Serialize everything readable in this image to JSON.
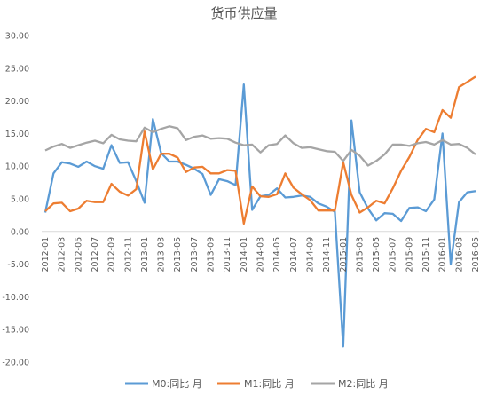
{
  "chart_data": {
    "type": "line",
    "title": "货币供应量",
    "xlabel": "",
    "ylabel": "",
    "ylim": [
      -20,
      30
    ],
    "yticks": [
      "30.00",
      "25.00",
      "20.00",
      "15.00",
      "10.00",
      "5.00",
      "0.00",
      "-5.00",
      "-10.00",
      "-15.00",
      "-20.00"
    ],
    "yticks_values": [
      30,
      25,
      20,
      15,
      10,
      5,
      0,
      -5,
      -10,
      -15,
      -20
    ],
    "x": [
      "2012-01",
      "2012-02",
      "2012-03",
      "2012-04",
      "2012-05",
      "2012-06",
      "2012-07",
      "2012-08",
      "2012-09",
      "2012-10",
      "2012-11",
      "2012-12",
      "2013-01",
      "2013-02",
      "2013-03",
      "2013-04",
      "2013-05",
      "2013-06",
      "2013-07",
      "2013-08",
      "2013-09",
      "2013-10",
      "2013-11",
      "2013-12",
      "2014-01",
      "2014-02",
      "2014-03",
      "2014-04",
      "2014-05",
      "2014-06",
      "2014-07",
      "2014-08",
      "2014-09",
      "2014-10",
      "2014-11",
      "2014-12",
      "2015-01",
      "2015-02",
      "2015-03",
      "2015-04",
      "2015-05",
      "2015-06",
      "2015-07",
      "2015-08",
      "2015-09",
      "2015-10",
      "2015-11",
      "2015-12",
      "2016-01",
      "2016-02",
      "2016-03",
      "2016-04",
      "2016-05"
    ],
    "xtick_labels": [
      "2012-01",
      "2012-03",
      "2012-05",
      "2012-07",
      "2012-09",
      "2012-11",
      "2013-01",
      "2013-03",
      "2013-05",
      "2013-07",
      "2013-09",
      "2013-11",
      "2014-01",
      "2014-03",
      "2014-05",
      "2014-07",
      "2014-09",
      "2014-11",
      "2015-01",
      "2015-03",
      "2015-05",
      "2015-07",
      "2015-09",
      "2015-11",
      "2016-01",
      "2016-03",
      "2016-05"
    ],
    "series": [
      {
        "name": "M0:同比 月",
        "color": "#5B9BD5",
        "values": [
          2.9,
          8.9,
          10.6,
          10.4,
          9.9,
          10.7,
          10.0,
          9.6,
          13.2,
          10.5,
          10.6,
          7.7,
          4.4,
          17.2,
          12.0,
          10.7,
          10.7,
          10.2,
          9.6,
          8.8,
          5.6,
          8.0,
          7.7,
          7.1,
          22.5,
          3.3,
          5.4,
          5.6,
          6.6,
          5.2,
          5.3,
          5.5,
          5.3,
          4.3,
          3.8,
          3.0,
          -17.6,
          17.0,
          6.0,
          3.5,
          1.7,
          2.8,
          2.7,
          1.6,
          3.6,
          3.7,
          3.1,
          4.9,
          15.0,
          -5.0,
          4.5,
          6.0,
          6.2
        ]
      },
      {
        "name": "M1:同比 月",
        "color": "#ED7D31",
        "values": [
          3.1,
          4.3,
          4.4,
          3.1,
          3.5,
          4.7,
          4.5,
          4.5,
          7.3,
          6.1,
          5.5,
          6.5,
          15.3,
          9.5,
          11.9,
          11.9,
          11.3,
          9.1,
          9.8,
          9.9,
          8.9,
          8.9,
          9.4,
          9.3,
          1.2,
          6.9,
          5.4,
          5.3,
          5.7,
          8.9,
          6.7,
          5.7,
          4.8,
          3.2,
          3.2,
          3.2,
          10.6,
          5.6,
          2.9,
          3.7,
          4.7,
          4.3,
          6.6,
          9.3,
          11.4,
          14.0,
          15.7,
          15.2,
          18.6,
          17.4,
          22.1,
          22.9,
          23.7
        ]
      },
      {
        "name": "M2:同比 月",
        "color": "#A5A5A5",
        "values": [
          12.4,
          13.0,
          13.4,
          12.8,
          13.2,
          13.6,
          13.9,
          13.5,
          14.8,
          14.1,
          13.9,
          13.8,
          15.9,
          15.2,
          15.7,
          16.1,
          15.8,
          14.0,
          14.5,
          14.7,
          14.2,
          14.3,
          14.2,
          13.6,
          13.2,
          13.3,
          12.1,
          13.2,
          13.4,
          14.7,
          13.5,
          12.8,
          12.9,
          12.6,
          12.3,
          12.2,
          10.8,
          12.5,
          11.6,
          10.1,
          10.8,
          11.8,
          13.3,
          13.3,
          13.1,
          13.5,
          13.7,
          13.3,
          14.0,
          13.3,
          13.4,
          12.8,
          11.8
        ]
      }
    ],
    "legend_position": "bottom",
    "grid": false
  }
}
